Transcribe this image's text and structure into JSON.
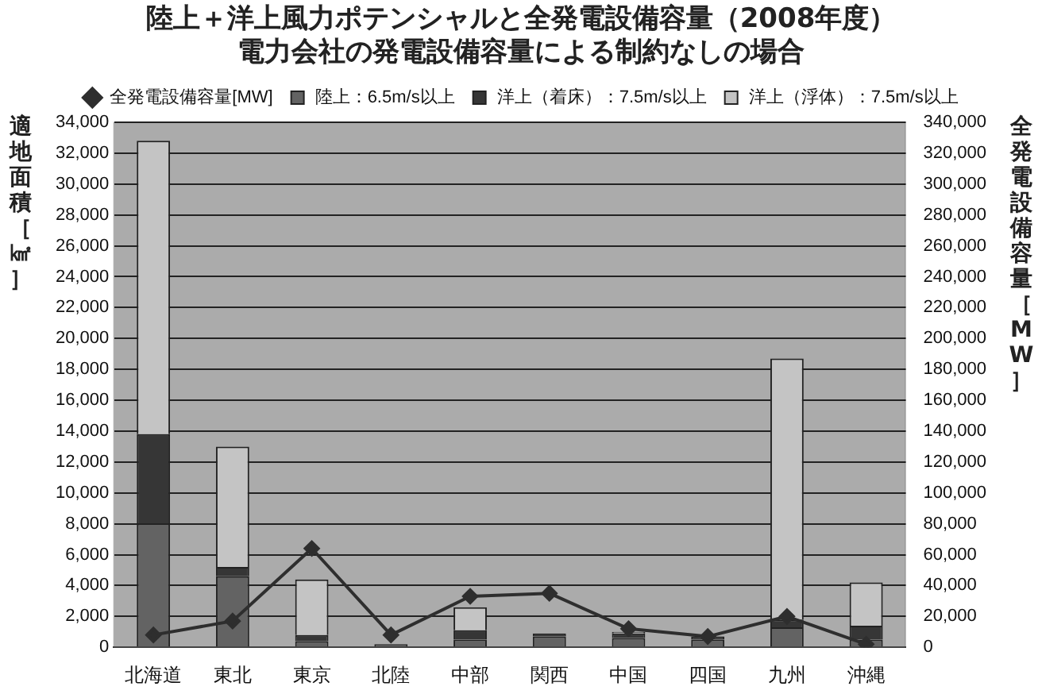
{
  "chart_data": {
    "type": "bar",
    "title": "陸上＋洋上風力ポテンシャルと全発電設備容量（2008年度）",
    "subtitle": "電力会社の発電設備容量による制約なしの場合",
    "ylabel": "適地面積［㎢］",
    "y2label": "全発電設備容量［MW］",
    "categories": [
      "北海道",
      "東北",
      "東京",
      "北陸",
      "中部",
      "関西",
      "中国",
      "四国",
      "九州",
      "沖縄"
    ],
    "stacked": true,
    "grid": "y",
    "legend": "top",
    "marker": "diamond",
    "series": [
      {
        "name": "陸上：6.5m/s以上",
        "color": "#636363",
        "values": [
          8000,
          4600,
          400,
          200,
          500,
          700,
          600,
          500,
          1300,
          500
        ]
      },
      {
        "name": "洋上（着床）：7.5m/s以上",
        "color": "#363636",
        "values": [
          5800,
          600,
          400,
          0,
          600,
          200,
          300,
          200,
          500,
          900
        ]
      },
      {
        "name": "洋上（浮体）：7.5m/s以上",
        "color": "#c4c4c4",
        "values": [
          19000,
          7800,
          3600,
          0,
          1500,
          0,
          100,
          0,
          16900,
          2800
        ]
      },
      {
        "name": "全発電設備容量[MW]",
        "type": "line",
        "axis": "y2",
        "color": "#2e2e2e",
        "values": [
          8000,
          17000,
          64000,
          8000,
          33000,
          35000,
          12000,
          7000,
          20000,
          2000
        ]
      }
    ],
    "ylim": [
      0,
      34000
    ],
    "yticks": [
      0,
      {
        "value": 2000,
        "label": "2,000"
      },
      {
        "value": 4000,
        "label": "4,000"
      },
      {
        "value": 6000,
        "label": "6,000"
      },
      {
        "value": 8000,
        "label": "8,000"
      },
      {
        "value": 10000,
        "label": "10,000"
      },
      {
        "value": 12000,
        "label": "12,000"
      },
      {
        "value": 14000,
        "label": "14,000"
      },
      {
        "value": 16000,
        "label": "16,000"
      },
      {
        "value": 18000,
        "label": "18,000"
      },
      {
        "value": 20000,
        "label": "20,000"
      },
      {
        "value": 22000,
        "label": "22,000"
      },
      {
        "value": 24000,
        "label": "24,000"
      },
      {
        "value": 26000,
        "label": "26,000"
      },
      {
        "value": 28000,
        "label": "28,000"
      },
      {
        "value": 30000,
        "label": "30,000"
      },
      {
        "value": 32000,
        "label": "32,000"
      },
      {
        "value": 34000,
        "label": "34,000"
      }
    ],
    "y2lim": [
      0,
      340000
    ],
    "y2ticks": [
      0,
      {
        "value": 20000,
        "label": "20,000"
      },
      {
        "value": 40000,
        "label": "40,000"
      },
      {
        "value": 60000,
        "label": "60,000"
      },
      {
        "value": 80000,
        "label": "80,000"
      },
      {
        "value": 100000,
        "label": "100,000"
      },
      {
        "value": 120000,
        "label": "120,000"
      },
      {
        "value": 140000,
        "label": "140,000"
      },
      {
        "value": 160000,
        "label": "160,000"
      },
      {
        "value": 180000,
        "label": "180,000"
      },
      {
        "value": 200000,
        "label": "200,000"
      },
      {
        "value": 220000,
        "label": "220,000"
      },
      {
        "value": 240000,
        "label": "240,000"
      },
      {
        "value": 260000,
        "label": "260,000"
      },
      {
        "value": 280000,
        "label": "280,000"
      },
      {
        "value": 300000,
        "label": "300,000"
      },
      {
        "value": 320000,
        "label": "320,000"
      },
      {
        "value": 340000,
        "label": "340,000"
      }
    ]
  }
}
